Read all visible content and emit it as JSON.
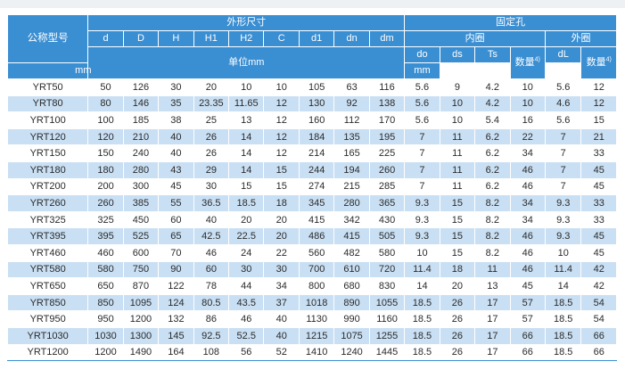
{
  "header": {
    "model_label": "公称型号",
    "outer_dims_label": "外形尺寸",
    "fixing_holes_label": "固定孔",
    "inner_ring_label": "内圈",
    "outer_ring_label": "外圈",
    "unit_label": "单位mm",
    "unit_mm": "mm",
    "count_label": "数量",
    "footnote_mark": "4)",
    "dim_cols": [
      "d",
      "D",
      "H",
      "H1",
      "H2",
      "C",
      "d1",
      "dn",
      "dm"
    ],
    "inner_cols": [
      "do",
      "ds",
      "Ts"
    ],
    "outer_col": "dL"
  },
  "rows": [
    [
      "YRT50",
      "50",
      "126",
      "30",
      "20",
      "10",
      "10",
      "105",
      "63",
      "116",
      "5.6",
      "9",
      "4.2",
      "10",
      "5.6",
      "12"
    ],
    [
      "YRT80",
      "80",
      "146",
      "35",
      "23.35",
      "11.65",
      "12",
      "130",
      "92",
      "138",
      "5.6",
      "10",
      "4.2",
      "10",
      "4.6",
      "12"
    ],
    [
      "YRT100",
      "100",
      "185",
      "38",
      "25",
      "13",
      "12",
      "160",
      "112",
      "170",
      "5.6",
      "10",
      "5.4",
      "16",
      "5.6",
      "15"
    ],
    [
      "YRT120",
      "120",
      "210",
      "40",
      "26",
      "14",
      "12",
      "184",
      "135",
      "195",
      "7",
      "11",
      "6.2",
      "22",
      "7",
      "21"
    ],
    [
      "YRT150",
      "150",
      "240",
      "40",
      "26",
      "14",
      "12",
      "214",
      "165",
      "225",
      "7",
      "11",
      "6.2",
      "34",
      "7",
      "33"
    ],
    [
      "YRT180",
      "180",
      "280",
      "43",
      "29",
      "14",
      "15",
      "244",
      "194",
      "260",
      "7",
      "11",
      "6.2",
      "46",
      "7",
      "45"
    ],
    [
      "YRT200",
      "200",
      "300",
      "45",
      "30",
      "15",
      "15",
      "274",
      "215",
      "285",
      "7",
      "11",
      "6.2",
      "46",
      "7",
      "45"
    ],
    [
      "YRT260",
      "260",
      "385",
      "55",
      "36.5",
      "18.5",
      "18",
      "345",
      "280",
      "365",
      "9.3",
      "15",
      "8.2",
      "34",
      "9.3",
      "33"
    ],
    [
      "YRT325",
      "325",
      "450",
      "60",
      "40",
      "20",
      "20",
      "415",
      "342",
      "430",
      "9.3",
      "15",
      "8.2",
      "34",
      "9.3",
      "33"
    ],
    [
      "YRT395",
      "395",
      "525",
      "65",
      "42.5",
      "22.5",
      "20",
      "486",
      "415",
      "505",
      "9.3",
      "15",
      "8.2",
      "46",
      "9.3",
      "45"
    ],
    [
      "YRT460",
      "460",
      "600",
      "70",
      "46",
      "24",
      "22",
      "560",
      "482",
      "580",
      "10",
      "15",
      "8.2",
      "46",
      "10",
      "45"
    ],
    [
      "YRT580",
      "580",
      "750",
      "90",
      "60",
      "30",
      "30",
      "700",
      "610",
      "720",
      "11.4",
      "18",
      "11",
      "46",
      "11.4",
      "42"
    ],
    [
      "YRT650",
      "650",
      "870",
      "122",
      "78",
      "44",
      "34",
      "800",
      "680",
      "830",
      "14",
      "20",
      "13",
      "45",
      "14",
      "42"
    ],
    [
      "YRT850",
      "850",
      "1095",
      "124",
      "80.5",
      "43.5",
      "37",
      "1018",
      "890",
      "1055",
      "18.5",
      "26",
      "17",
      "57",
      "18.5",
      "54"
    ],
    [
      "YRT950",
      "950",
      "1200",
      "132",
      "86",
      "46",
      "40",
      "1130",
      "990",
      "1160",
      "18.5",
      "26",
      "17",
      "57",
      "18.5",
      "54"
    ],
    [
      "YRT1030",
      "1030",
      "1300",
      "145",
      "92.5",
      "52.5",
      "40",
      "1215",
      "1075",
      "1255",
      "18.5",
      "26",
      "17",
      "66",
      "18.5",
      "66"
    ],
    [
      "YRT1200",
      "1200",
      "1490",
      "164",
      "108",
      "56",
      "52",
      "1410",
      "1240",
      "1445",
      "18.5",
      "26",
      "17",
      "66",
      "18.5",
      "66"
    ]
  ]
}
